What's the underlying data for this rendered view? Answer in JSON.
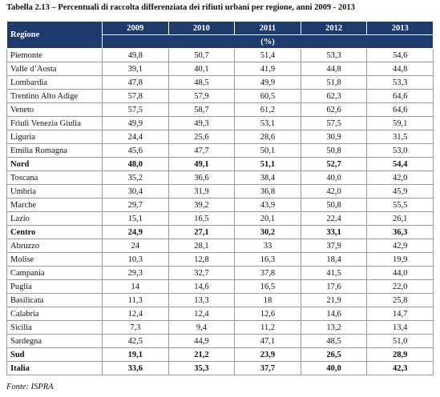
{
  "header": {
    "title": "Tabella 2.13 – Percentuali di raccolta differenziata dei rifiuti urbani per regione, anni 2009 - 2013"
  },
  "table": {
    "columns": [
      "Regione",
      "2009",
      "2010",
      "2011",
      "2012",
      "2013"
    ],
    "unit": "(%)",
    "rows": [
      [
        "Piemonte",
        "49,8",
        "50,7",
        "51,4",
        "53,3",
        "54,6"
      ],
      [
        "Valle d’Aosta",
        "39,1",
        "40,1",
        "41,9",
        "44,8",
        "44,8"
      ],
      [
        "Lombardia",
        "47,8",
        "48,5",
        "49,9",
        "51,8",
        "53,3"
      ],
      [
        "Trentino Alto Adige",
        "57,8",
        "57,9",
        "60,5",
        "62,3",
        "64,6"
      ],
      [
        "Veneto",
        "57,5",
        "58,7",
        "61,2",
        "62,6",
        "64,6"
      ],
      [
        "Friuli Venezia Giulia",
        "49,9",
        "49,3",
        "53,1",
        "57,5",
        "59,1"
      ],
      [
        "Liguria",
        "24,4",
        "25,6",
        "28,6",
        "30,9",
        "31,5"
      ],
      [
        "Emilia Romagna",
        "45,6",
        "47,7",
        "50,1",
        "50,8",
        "53,0"
      ],
      [
        "Nord",
        "48,0",
        "49,1",
        "51,1",
        "52,7",
        "54,4"
      ],
      [
        "Toscana",
        "35,2",
        "36,6",
        "38,4",
        "40,0",
        "42,0"
      ],
      [
        "Umbria",
        "30,4",
        "31,9",
        "36,8",
        "42,0",
        "45,9"
      ],
      [
        "Marche",
        "29,7",
        "39,2",
        "43,9",
        "50,8",
        "55,5"
      ],
      [
        "Lazio",
        "15,1",
        "16,5",
        "20,1",
        "22,4",
        "26,1"
      ],
      [
        "Centro",
        "24,9",
        "27,1",
        "30,2",
        "33,1",
        "36,3"
      ],
      [
        "Abruzzo",
        "24",
        "28,1",
        "33",
        "37,9",
        "42,9"
      ],
      [
        "Molise",
        "10,3",
        "12,8",
        "16,3",
        "18,4",
        "19,9"
      ],
      [
        "Campania",
        "29,3",
        "32,7",
        "37,8",
        "41,5",
        "44,0"
      ],
      [
        "Puglia",
        "14",
        "14,6",
        "16,5",
        "17,6",
        "22,0"
      ],
      [
        "Basilicata",
        "11,3",
        "13,3",
        "18",
        "21,9",
        "25,8"
      ],
      [
        "Calabria",
        "12,4",
        "12,4",
        "12,6",
        "14,6",
        "14,7"
      ],
      [
        "Sicilia",
        "7,3",
        "9,4",
        "11,2",
        "13,2",
        "13,4"
      ],
      [
        "Sardegna",
        "42,5",
        "44,9",
        "47,1",
        "48,5",
        "51,0"
      ],
      [
        "Sud",
        "19,1",
        "21,2",
        "23,9",
        "26,5",
        "28,9"
      ],
      [
        "Italia",
        "33,6",
        "35,3",
        "37,7",
        "40,0",
        "42,3"
      ]
    ]
  },
  "footer": {
    "source": "Fonte: ISPRA"
  }
}
